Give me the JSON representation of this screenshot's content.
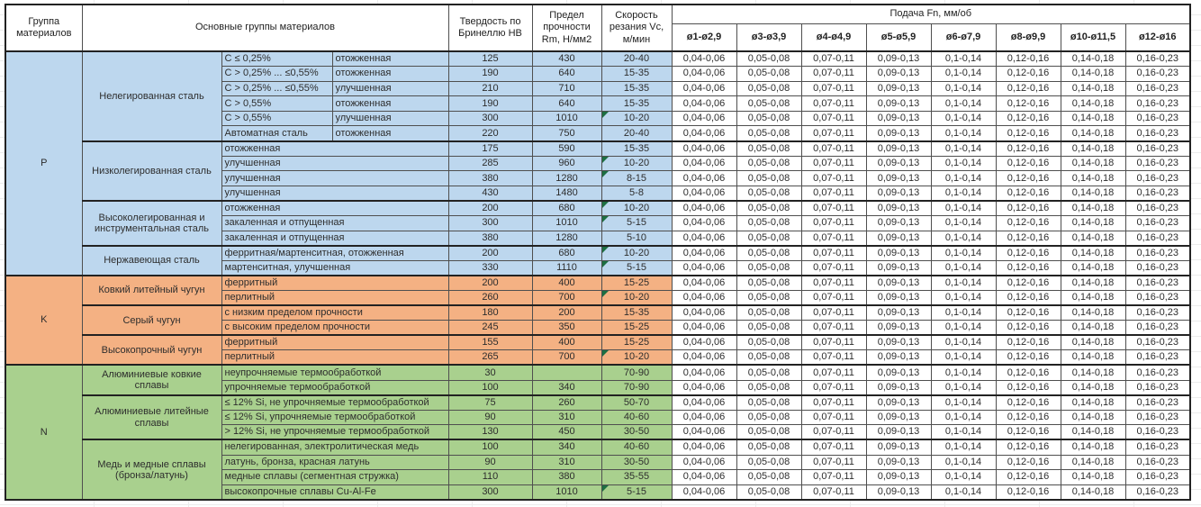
{
  "table": {
    "headers": {
      "group": "Группа материалов",
      "main_groups": "Основные группы материалов",
      "hardness": "Твердость по Бринеллю HB",
      "strength": "Предел прочности Rm, Н/мм2",
      "speed": "Скорость резания Vc, м/мин",
      "feed": "Подача Fn, мм/об",
      "diameters": [
        "ø1-ø2,9",
        "ø3-ø3,9",
        "ø4-ø4,9",
        "ø5-ø5,9",
        "ø6-ø7,9",
        "ø8-ø9,9",
        "ø10-ø11,5",
        "ø12-ø16"
      ]
    },
    "feed_values": [
      "0,04-0,06",
      "0,05-0,08",
      "0,07-0,11",
      "0,09-0,13",
      "0,1-0,14",
      "0,12-0,16",
      "0,14-0,18",
      "0,16-0,23"
    ],
    "colors": {
      "indicator_triangle": "#1d6f42",
      "border": "#222222"
    },
    "groups": [
      {
        "label": "P",
        "color": "#BDD7EE",
        "families": [
          {
            "name": "Нелегированная сталь",
            "rows": [
              {
                "comp": "C ≤ 0,25%",
                "state": "отожженная",
                "hb": "125",
                "rm": "430",
                "vc": "20-40"
              },
              {
                "comp": "C > 0,25% ... ≤0,55%",
                "state": "отожженная",
                "hb": "190",
                "rm": "640",
                "vc": "15-35"
              },
              {
                "comp": "C > 0,25% ... ≤0,55%",
                "state": "улучшенная",
                "hb": "210",
                "rm": "710",
                "vc": "15-35"
              },
              {
                "comp": "C > 0,55%",
                "state": "отожженная",
                "hb": "190",
                "rm": "640",
                "vc": "15-35"
              },
              {
                "comp": "C > 0,55%",
                "state": "улучшенная",
                "hb": "300",
                "rm": "1010",
                "vc": "10-20",
                "indicator": true
              },
              {
                "comp": "Автоматная сталь",
                "state": "отожженная",
                "hb": "220",
                "rm": "750",
                "vc": "20-40"
              }
            ]
          },
          {
            "name": "Низколегированная сталь",
            "rows": [
              {
                "desc": "отожженная",
                "hb": "175",
                "rm": "590",
                "vc": "15-35"
              },
              {
                "desc": "улучшенная",
                "hb": "285",
                "rm": "960",
                "vc": "10-20",
                "indicator": true
              },
              {
                "desc": "улучшенная",
                "hb": "380",
                "rm": "1280",
                "vc": "8-15",
                "indicator": true
              },
              {
                "desc": "улучшенная",
                "hb": "430",
                "rm": "1480",
                "vc": "5-8"
              }
            ]
          },
          {
            "name": "Высоколегированная и инструментальная сталь",
            "rows": [
              {
                "desc": "отожженная",
                "hb": "200",
                "rm": "680",
                "vc": "10-20",
                "indicator": true
              },
              {
                "desc": "закаленная и отпущенная",
                "hb": "300",
                "rm": "1010",
                "vc": "5-15",
                "indicator": true
              },
              {
                "desc": "закаленная и отпущенная",
                "hb": "380",
                "rm": "1280",
                "vc": "5-10"
              }
            ]
          },
          {
            "name": "Нержавеющая сталь",
            "rows": [
              {
                "desc": "ферритная/мартенситная, отожженная",
                "hb": "200",
                "rm": "680",
                "vc": "10-20",
                "indicator": true
              },
              {
                "desc": "мартенситная, улучшенная",
                "hb": "330",
                "rm": "1110",
                "vc": "5-15",
                "indicator": true
              }
            ]
          }
        ]
      },
      {
        "label": "K",
        "color": "#F4B183",
        "families": [
          {
            "name": "Ковкий литейный чугун",
            "rows": [
              {
                "desc": "ферритный",
                "hb": "200",
                "rm": "400",
                "vc": "15-25"
              },
              {
                "desc": "перлитный",
                "hb": "260",
                "rm": "700",
                "vc": "10-20",
                "indicator": true
              }
            ]
          },
          {
            "name": "Серый чугун",
            "rows": [
              {
                "desc": "с низким пределом прочности",
                "hb": "180",
                "rm": "200",
                "vc": "15-35"
              },
              {
                "desc": "с высоким пределом прочности",
                "hb": "245",
                "rm": "350",
                "vc": "15-25"
              }
            ]
          },
          {
            "name": "Высокопрочный чугун",
            "rows": [
              {
                "desc": "ферритный",
                "hb": "155",
                "rm": "400",
                "vc": "15-25"
              },
              {
                "desc": "перлитный",
                "hb": "265",
                "rm": "700",
                "vc": "10-20",
                "indicator": true
              }
            ]
          }
        ]
      },
      {
        "label": "N",
        "color": "#A9D08E",
        "families": [
          {
            "name": "Алюминиевые ковкие сплавы",
            "rows": [
              {
                "desc": "неупрочняемые термообработкой",
                "hb": "30",
                "rm": "",
                "vc": "70-90"
              },
              {
                "desc": "упрочняемые термообработкой",
                "hb": "100",
                "rm": "340",
                "vc": "70-90"
              }
            ]
          },
          {
            "name": "Алюминиевые литейные сплавы",
            "rows": [
              {
                "desc": "≤ 12% Si, не упрочняемые термообработкой",
                "hb": "75",
                "rm": "260",
                "vc": "50-70"
              },
              {
                "desc": "≤ 12% Si, упрочняемые термообработкой",
                "hb": "90",
                "rm": "310",
                "vc": "40-60"
              },
              {
                "desc": "> 12% Si, не упрочняемые термообработкой",
                "hb": "130",
                "rm": "450",
                "vc": "30-50"
              }
            ]
          },
          {
            "name": "Медь и медные сплавы (бронза/латунь)",
            "rows": [
              {
                "desc": "нелегированная, электролитическая медь",
                "hb": "100",
                "rm": "340",
                "vc": "40-60"
              },
              {
                "desc": "латунь, бронза, красная латунь",
                "hb": "90",
                "rm": "310",
                "vc": "30-50"
              },
              {
                "desc": "медные сплавы (сегментная стружка)",
                "hb": "110",
                "rm": "380",
                "vc": "35-55"
              },
              {
                "desc": "высокопрочные сплавы Cu-Al-Fe",
                "hb": "300",
                "rm": "1010",
                "vc": "5-15",
                "indicator": true
              }
            ]
          }
        ]
      }
    ]
  }
}
